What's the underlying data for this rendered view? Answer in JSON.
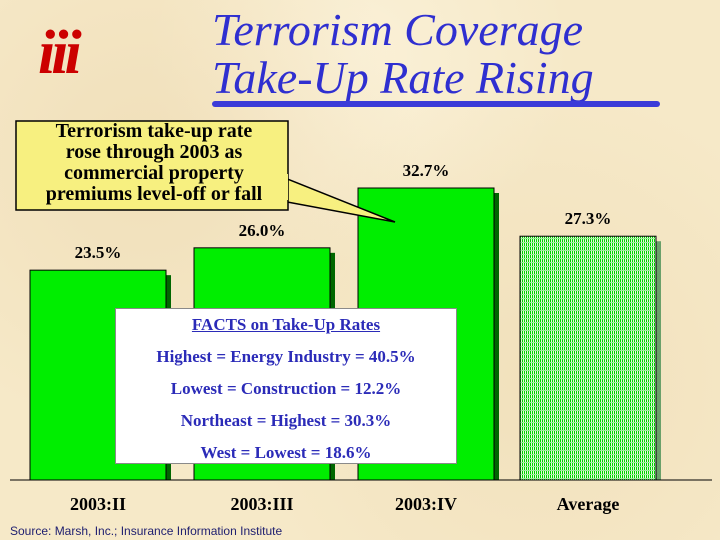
{
  "logo": {
    "text": "iii"
  },
  "title": {
    "line1": "Terrorism Coverage",
    "line2": "Take-Up Rate Rising"
  },
  "callout": {
    "lines": [
      "Terrorism take-up rate",
      "rose through 2003 as",
      "commercial property",
      "premiums level-off or fall"
    ]
  },
  "facts": {
    "heading": "FACTS on Take-Up Rates",
    "items": [
      "Highest = Energy Industry = 40.5%",
      "Lowest = Construction = 12.2%",
      "Northeast = Highest = 30.3%",
      "West = Lowest = 18.6%"
    ]
  },
  "source": "Source:  Marsh, Inc.; Insurance Information Institute",
  "colors": {
    "bar": "#00ee00",
    "bar_dark": "#006600",
    "title": "#2f2fd0",
    "logo": "#cc0000",
    "facts_text": "#2b2bb8",
    "rule": "#3b3bd8"
  },
  "chart_data": {
    "type": "bar",
    "categories": [
      "2003:II",
      "2003:III",
      "2003:IV",
      "Average"
    ],
    "values": [
      23.5,
      26.0,
      32.7,
      27.3
    ],
    "value_labels": [
      "23.5%",
      "26.0%",
      "32.7%",
      "27.3%"
    ],
    "styles": [
      "solid",
      "solid",
      "solid",
      "hatched"
    ],
    "title": "",
    "xlabel": "",
    "ylabel": "",
    "grid": false,
    "legend": "none"
  }
}
